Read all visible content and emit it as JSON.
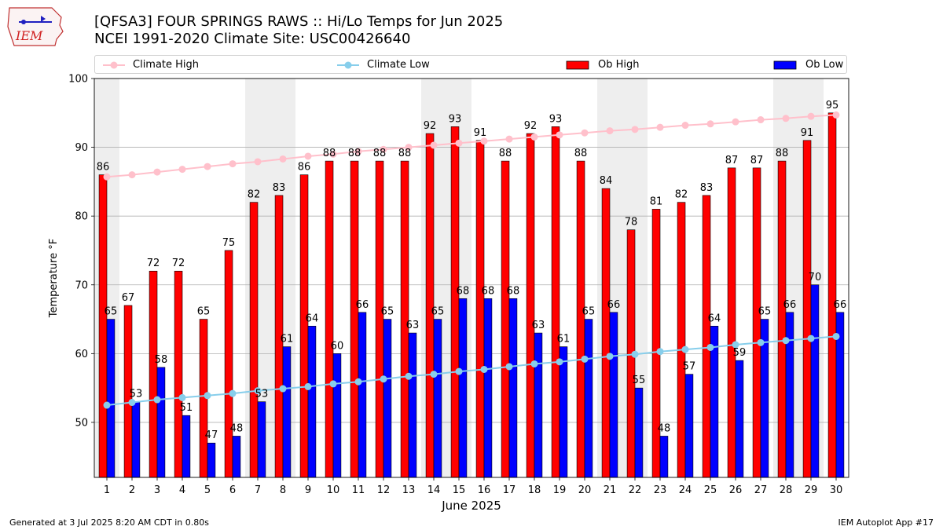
{
  "header": {
    "title": "[QFSA3] FOUR SPRINGS RAWS :: Hi/Lo Temps for Jun 2025",
    "subtitle": "NCEI 1991-2020 Climate Site: USC00426640",
    "logo_text": "IEM"
  },
  "legend": {
    "climate_high": "Climate High",
    "climate_low": "Climate Low",
    "ob_high": "Ob High",
    "ob_low": "Ob Low"
  },
  "footer": {
    "left": "Generated at 3 Jul 2025 8:20 AM CDT in 0.80s",
    "right": "IEM Autoplot App #17"
  },
  "colors": {
    "ob_high": "#ff0000",
    "ob_low": "#0000ff",
    "climate_high": "#ffc0cb",
    "climate_low": "#87ceeb",
    "weekend_shade": "#eeeeee",
    "grid": "#b0b0b0"
  },
  "chart_data": {
    "type": "bar",
    "title": "[QFSA3] FOUR SPRINGS RAWS :: Hi/Lo Temps for Jun 2025",
    "xlabel": "June 2025",
    "ylabel": "Temperature °F",
    "ylim": [
      42,
      100
    ],
    "yticks": [
      50,
      60,
      70,
      80,
      90,
      100
    ],
    "grid": true,
    "legend_position": "top",
    "categories": [
      "1",
      "2",
      "3",
      "4",
      "5",
      "6",
      "7",
      "8",
      "9",
      "10",
      "11",
      "12",
      "13",
      "14",
      "15",
      "16",
      "17",
      "18",
      "19",
      "20",
      "21",
      "22",
      "23",
      "24",
      "25",
      "26",
      "27",
      "28",
      "29",
      "30"
    ],
    "shaded_days": [
      1,
      7,
      8,
      14,
      15,
      21,
      22,
      28,
      29
    ],
    "series": [
      {
        "name": "Ob High",
        "type": "bar",
        "values": [
          86,
          67,
          72,
          72,
          65,
          75,
          82,
          83,
          86,
          88,
          88,
          88,
          88,
          92,
          93,
          91,
          88,
          92,
          93,
          88,
          84,
          78,
          81,
          82,
          83,
          87,
          87,
          88,
          91,
          95
        ]
      },
      {
        "name": "Ob Low",
        "type": "bar",
        "values": [
          65,
          53,
          58,
          51,
          47,
          48,
          53,
          61,
          64,
          60,
          66,
          65,
          63,
          65,
          68,
          68,
          68,
          63,
          61,
          65,
          66,
          55,
          48,
          57,
          64,
          59,
          65,
          66,
          70,
          66
        ]
      },
      {
        "name": "Climate High",
        "type": "line",
        "values": [
          85.7,
          86.0,
          86.4,
          86.8,
          87.2,
          87.6,
          87.9,
          88.3,
          88.7,
          89.0,
          89.4,
          89.7,
          90.0,
          90.3,
          90.6,
          90.9,
          91.2,
          91.5,
          91.8,
          92.1,
          92.4,
          92.6,
          92.9,
          93.2,
          93.4,
          93.7,
          94.0,
          94.2,
          94.5,
          94.7
        ]
      },
      {
        "name": "Climate Low",
        "type": "line",
        "values": [
          52.5,
          52.9,
          53.3,
          53.6,
          53.9,
          54.2,
          54.6,
          54.9,
          55.2,
          55.6,
          55.9,
          56.3,
          56.7,
          57.0,
          57.4,
          57.7,
          58.1,
          58.5,
          58.8,
          59.2,
          59.6,
          59.9,
          60.3,
          60.6,
          60.9,
          61.3,
          61.6,
          61.9,
          62.2,
          62.5
        ]
      }
    ]
  }
}
